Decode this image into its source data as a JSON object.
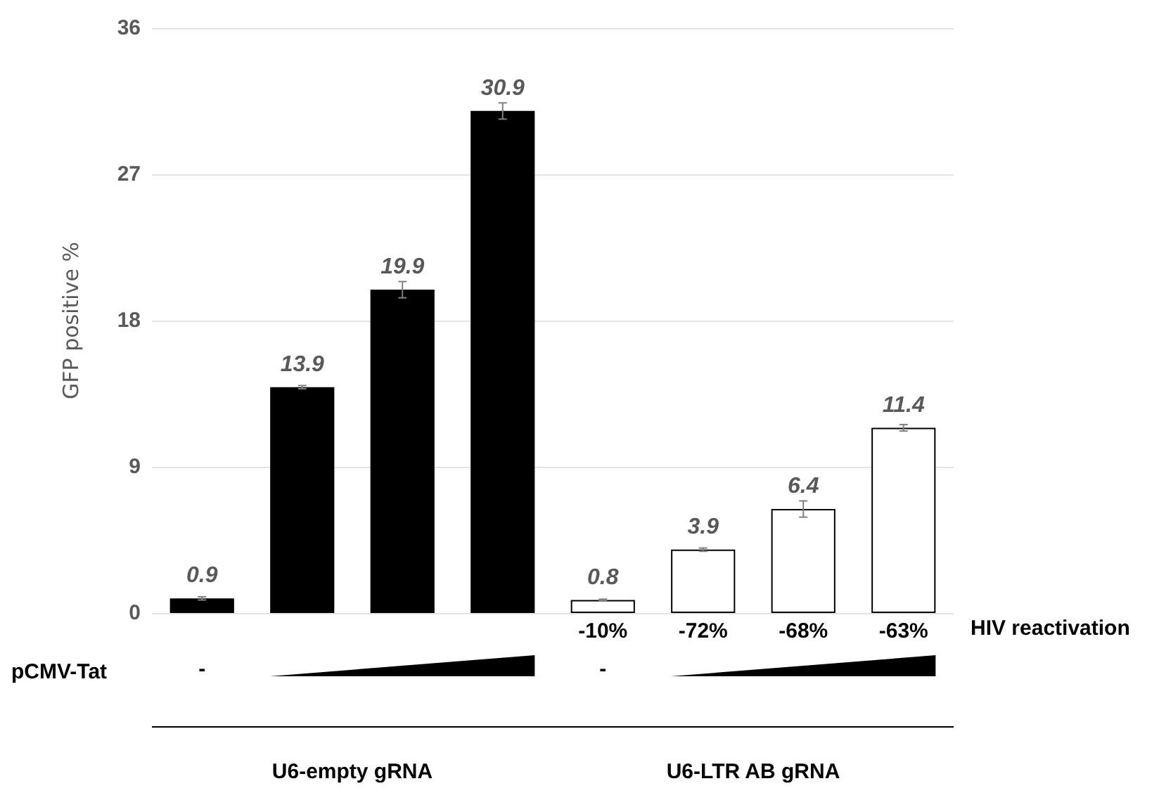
{
  "chart_data": {
    "type": "bar",
    "ylabel": "GFP positive %",
    "categories": [
      null,
      null,
      null,
      null,
      null,
      null,
      null,
      null
    ],
    "values": [
      0.9,
      13.9,
      19.9,
      30.9,
      0.8,
      3.9,
      6.4,
      11.4
    ],
    "errors": [
      0.1,
      0.1,
      0.5,
      0.5,
      0.05,
      0.1,
      0.5,
      0.2
    ],
    "colors": [
      "#000000",
      "#000000",
      "#000000",
      "#000000",
      "#ffffff",
      "#ffffff",
      "#ffffff",
      "#ffffff"
    ],
    "ylim": [
      0,
      36
    ],
    "yticks": [
      0,
      9,
      18,
      27,
      36
    ],
    "grid": "y",
    "data_labels": true,
    "annotations": [
      "-10%",
      "-72%",
      "-68%",
      "-63%",
      "HIV reactivation",
      "pCMV-Tat",
      "-",
      "-",
      "U6-empty gRNA",
      "U6-LTR AB gRNA"
    ]
  }
}
